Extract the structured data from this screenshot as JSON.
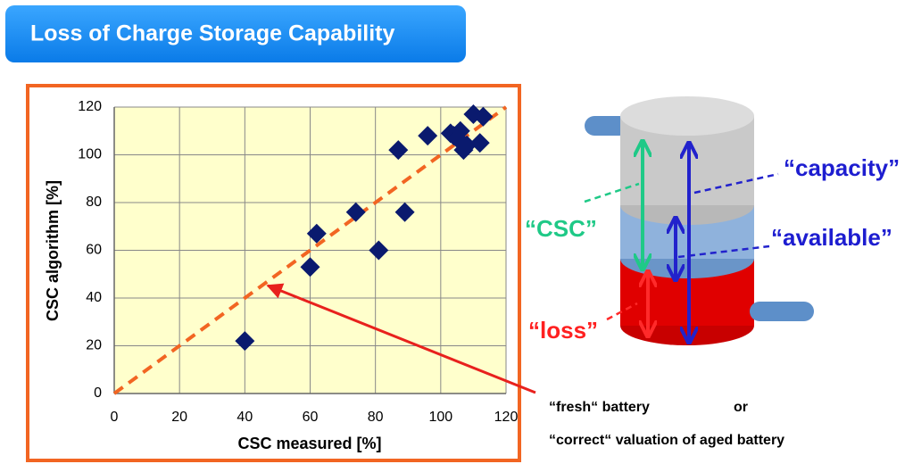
{
  "title": "Loss of Charge Storage Capability",
  "chart_data": {
    "type": "scatter",
    "x_label": "CSC measured [%]",
    "y_label": "CSC algorithm [%]",
    "series": [
      {
        "color": "#0a1a6e",
        "x": [
          40,
          60,
          62,
          74,
          81,
          87,
          89,
          96,
          103,
          104,
          105,
          106,
          107,
          108,
          110,
          112,
          113
        ],
        "values": [
          22,
          53,
          67,
          76,
          60,
          102,
          76,
          108,
          109,
          108,
          107,
          110,
          102,
          104,
          117,
          105,
          116
        ]
      }
    ],
    "reference_line": {
      "x": [
        0,
        120
      ],
      "y": [
        0,
        120
      ],
      "color": "#f26522"
    },
    "xlim": [
      0,
      120
    ],
    "xticks": [
      0,
      20,
      40,
      60,
      80,
      100,
      120
    ],
    "ylim": [
      0,
      120
    ],
    "yticks": [
      0,
      20,
      40,
      60,
      80,
      100,
      120
    ],
    "grid": true
  },
  "diagram": {
    "labels": {
      "capacity": "“capacity”",
      "available": "“available”",
      "csc": "“CSC”",
      "loss": "“loss”"
    }
  },
  "annotation": {
    "line1": "“fresh“ battery",
    "or": "or",
    "line2": "“correct“ valuation of aged battery"
  }
}
